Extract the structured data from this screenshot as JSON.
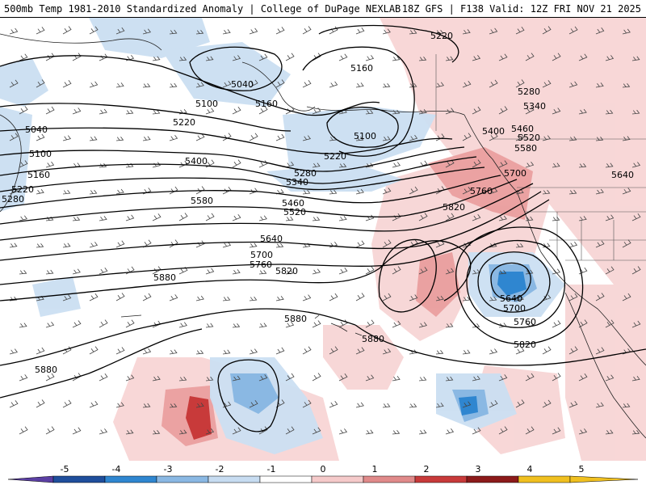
{
  "header": {
    "title_left": "500mb Temp 1981-2010 Standardized Anomaly | College of DuPage NEXLAB",
    "title_right": "18Z GFS | F138 Valid: 12Z FRI NOV 21 2025"
  },
  "contour_labels": [
    "5220",
    "5040",
    "5160",
    "5100",
    "5160",
    "5100",
    "5040",
    "5100",
    "5220",
    "5160",
    "5220",
    "5280",
    "5400",
    "5280",
    "5340",
    "5220",
    "5460",
    "5520",
    "5580",
    "5280",
    "5340",
    "5400",
    "5460",
    "5520",
    "5580",
    "5700",
    "5760",
    "5640",
    "5640",
    "5700",
    "5760",
    "5820",
    "5820",
    "5880",
    "5880",
    "5880",
    "5640",
    "5700",
    "5760",
    "5820",
    "5880"
  ],
  "legend": {
    "ticks": [
      "-5",
      "-4",
      "-3",
      "-2",
      "-1",
      "0",
      "1",
      "2",
      "3",
      "4",
      "5"
    ],
    "colors": [
      "#5b3fa3",
      "#1f4e9c",
      "#2f86d0",
      "#8ab8e3",
      "#c7dcf1",
      "#ffffff",
      "#f5caca",
      "#e08a8a",
      "#c83a3a",
      "#8c1a1a",
      "#f0c020"
    ]
  },
  "colors": {
    "contour": "#000000",
    "wind_barb": "#444444",
    "coastline": "#222222"
  }
}
